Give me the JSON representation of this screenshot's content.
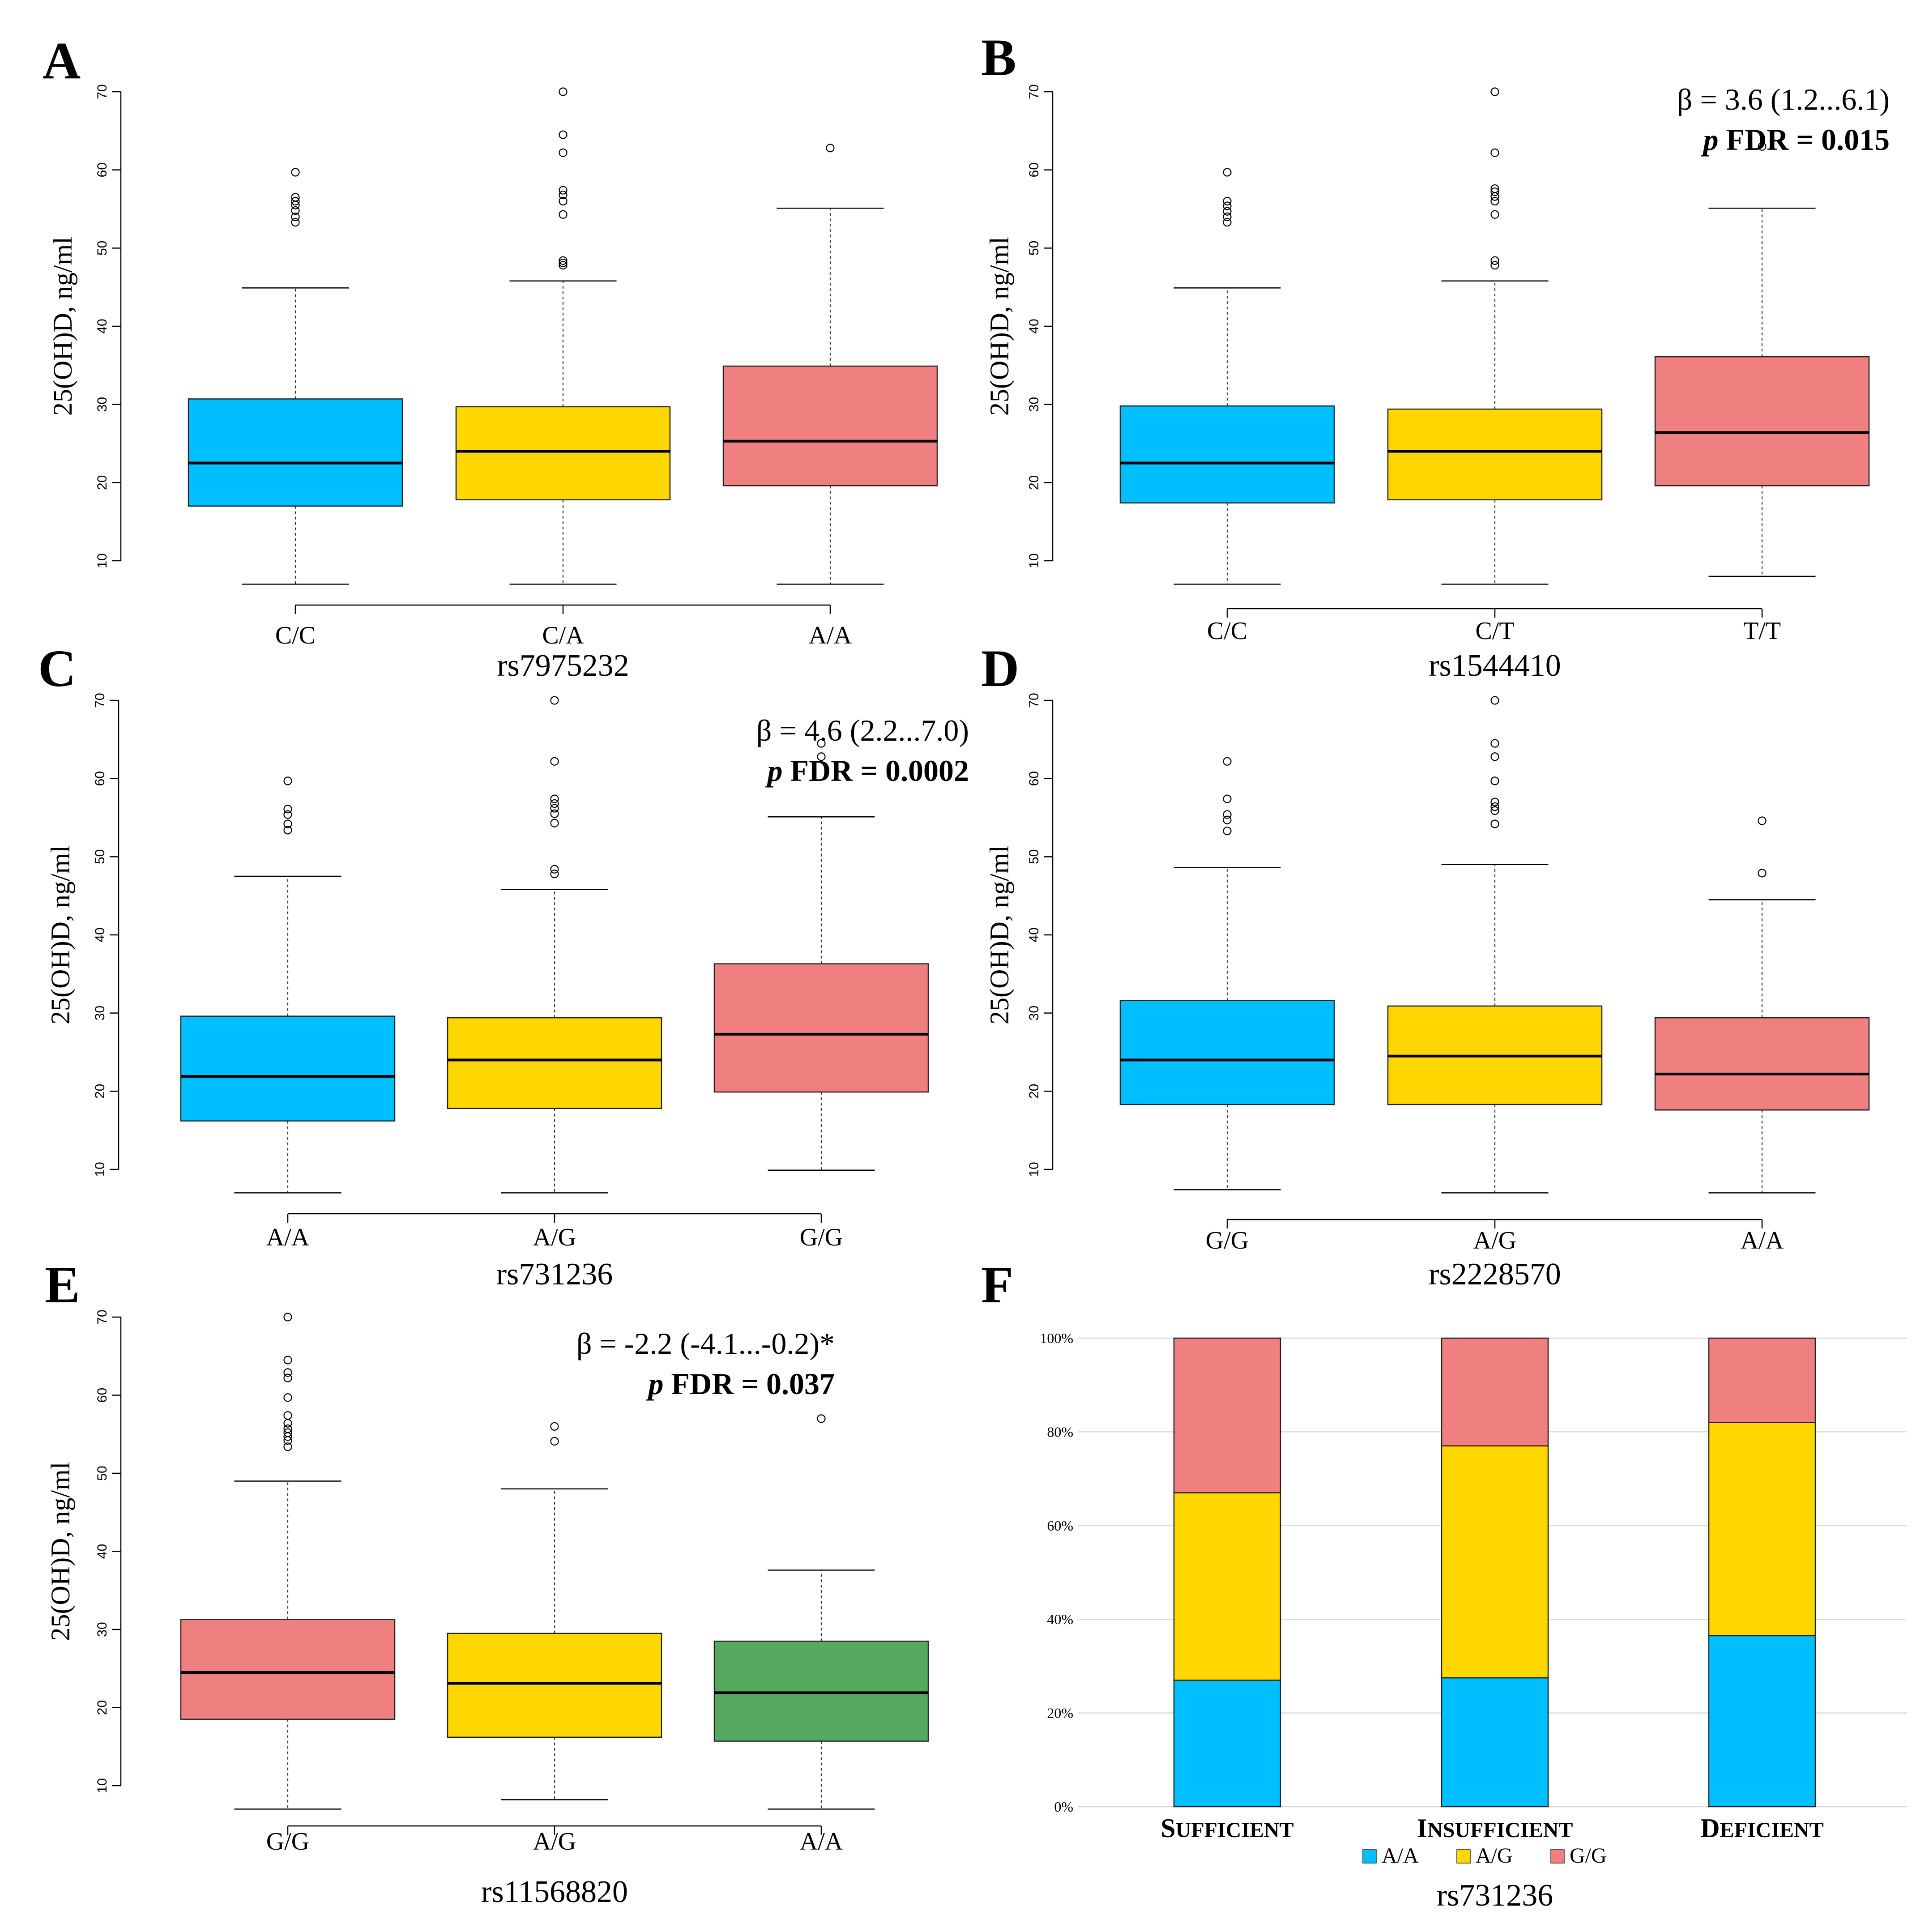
{
  "colors": {
    "blue": "#00BFFF",
    "yellow": "#FFD700",
    "red": "#F08080",
    "green": "#55AA60",
    "grid": "#D9D9D9"
  },
  "chart_data": [
    {
      "id": "A",
      "type": "boxplot",
      "panel_letter": "A",
      "ylabel": "25(OH)D, ng/ml",
      "xlabel": "rs7975232",
      "yticks": [
        10,
        20,
        30,
        40,
        50,
        60,
        70
      ],
      "ylim": [
        7,
        70
      ],
      "stats": null,
      "groups": [
        {
          "label": "C/C",
          "color": "blue",
          "whisker_low": 7,
          "q1": 17,
          "median": 22.5,
          "q3": 30.7,
          "whisker_high": 44.9,
          "outliers": [
            53.3,
            54,
            54.8,
            55.5,
            56,
            56.5,
            59.7
          ]
        },
        {
          "label": "C/A",
          "color": "yellow",
          "whisker_low": 7,
          "q1": 17.8,
          "median": 24,
          "q3": 29.7,
          "whisker_high": 45.8,
          "outliers": [
            47.8,
            48.1,
            48.4,
            54.3,
            56,
            56.8,
            57.4,
            62.2,
            64.5,
            70
          ]
        },
        {
          "label": "A/A",
          "color": "red",
          "whisker_low": 7,
          "q1": 19.6,
          "median": 25.3,
          "q3": 34.9,
          "whisker_high": 55.1,
          "outliers": [
            62.8
          ]
        }
      ]
    },
    {
      "id": "B",
      "type": "boxplot",
      "panel_letter": "B",
      "ylabel": "25(OH)D, ng/ml",
      "xlabel": "rs1544410",
      "yticks": [
        10,
        20,
        30,
        40,
        50,
        60,
        70
      ],
      "ylim": [
        7,
        70
      ],
      "stats": {
        "line1": "β = 3.6 (1.2...6.1)",
        "p_symbol": "p",
        "line2_rest": " FDR = 0.015"
      },
      "groups": [
        {
          "label": "C/C",
          "color": "blue",
          "whisker_low": 7,
          "q1": 17.4,
          "median": 22.5,
          "q3": 29.8,
          "whisker_high": 44.9,
          "outliers": [
            53.3,
            54,
            54.7,
            55.4,
            56,
            59.7
          ]
        },
        {
          "label": "C/T",
          "color": "yellow",
          "whisker_low": 7,
          "q1": 17.8,
          "median": 24,
          "q3": 29.4,
          "whisker_high": 45.8,
          "outliers": [
            47.8,
            48.4,
            54.3,
            56,
            56.6,
            57.2,
            57.6,
            62.2,
            70
          ]
        },
        {
          "label": "T/T",
          "color": "red",
          "whisker_low": 8,
          "q1": 19.6,
          "median": 26.4,
          "q3": 36.1,
          "whisker_high": 55.1,
          "outliers": [
            63
          ]
        }
      ]
    },
    {
      "id": "C",
      "type": "boxplot",
      "panel_letter": "C",
      "ylabel": "25(OH)D, ng/ml",
      "xlabel": "rs731236",
      "yticks": [
        10,
        20,
        30,
        40,
        50,
        60,
        70
      ],
      "ylim": [
        7,
        70
      ],
      "stats": {
        "line1": "β = 4.6 (2.2...7.0)",
        "p_symbol": "p",
        "line2_rest": " FDR = 0.0002"
      },
      "groups": [
        {
          "label": "A/A",
          "color": "blue",
          "whisker_low": 7,
          "q1": 16.2,
          "median": 21.9,
          "q3": 29.6,
          "whisker_high": 47.5,
          "outliers": [
            53.4,
            54.2,
            55.4,
            56.1,
            59.7
          ]
        },
        {
          "label": "A/G",
          "color": "yellow",
          "whisker_low": 7,
          "q1": 17.8,
          "median": 24,
          "q3": 29.4,
          "whisker_high": 45.8,
          "outliers": [
            47.8,
            48.4,
            54.3,
            55.5,
            56.2,
            56.8,
            57.4,
            62.2,
            70
          ]
        },
        {
          "label": "G/G",
          "color": "red",
          "whisker_low": 9.9,
          "q1": 19.9,
          "median": 27.3,
          "q3": 36.3,
          "whisker_high": 55.1,
          "outliers": [
            62.8,
            64.5
          ]
        }
      ]
    },
    {
      "id": "D",
      "type": "boxplot",
      "panel_letter": "D",
      "ylabel": "25(OH)D, ng/ml",
      "xlabel": "rs2228570",
      "yticks": [
        10,
        20,
        30,
        40,
        50,
        60,
        70
      ],
      "ylim": [
        7,
        70
      ],
      "stats": null,
      "groups": [
        {
          "label": "G/G",
          "color": "blue",
          "whisker_low": 7.4,
          "q1": 18.3,
          "median": 24,
          "q3": 31.6,
          "whisker_high": 48.6,
          "outliers": [
            53.3,
            54.7,
            55.4,
            57.4,
            62.2
          ]
        },
        {
          "label": "A/G",
          "color": "yellow",
          "whisker_low": 7,
          "q1": 18.3,
          "median": 24.5,
          "q3": 30.9,
          "whisker_high": 49,
          "outliers": [
            54.2,
            55.9,
            56.4,
            57,
            59.7,
            62.8,
            64.5,
            70
          ]
        },
        {
          "label": "A/A",
          "color": "red",
          "whisker_low": 7,
          "q1": 17.6,
          "median": 22.2,
          "q3": 29.4,
          "whisker_high": 44.5,
          "outliers": [
            47.9,
            54.6
          ]
        }
      ]
    },
    {
      "id": "E",
      "type": "boxplot",
      "panel_letter": "E",
      "ylabel": "25(OH)D, ng/ml",
      "xlabel": "rs11568820",
      "yticks": [
        10,
        20,
        30,
        40,
        50,
        60,
        70
      ],
      "ylim": [
        7,
        70
      ],
      "stats": {
        "line1": "β = -2.2 (-4.1...-0.2)*",
        "p_symbol": "p",
        "line2_rest": " FDR = 0.037"
      },
      "groups": [
        {
          "label": "G/G",
          "color": "red",
          "whisker_low": 7,
          "q1": 18.5,
          "median": 24.5,
          "q3": 31.3,
          "whisker_high": 49,
          "outliers": [
            53.4,
            54.2,
            54.7,
            55.2,
            55.7,
            56.4,
            57.4,
            59.7,
            62.2,
            62.9,
            64.5,
            70
          ]
        },
        {
          "label": "A/G",
          "color": "yellow",
          "whisker_low": 8.2,
          "q1": 16.2,
          "median": 23.1,
          "q3": 29.5,
          "whisker_high": 48,
          "outliers": [
            54.1,
            56
          ]
        },
        {
          "label": "A/A",
          "color": "green",
          "whisker_low": 7,
          "q1": 15.7,
          "median": 21.9,
          "q3": 28.5,
          "whisker_high": 37.6,
          "outliers": [
            57
          ]
        }
      ]
    },
    {
      "id": "F",
      "type": "stacked-bar",
      "panel_letter": "F",
      "xlabel": "rs731236",
      "ylim": [
        0,
        100
      ],
      "yticks": [
        "0%",
        "20%",
        "40%",
        "60%",
        "80%",
        "100%"
      ],
      "categories": [
        {
          "first": "S",
          "rest": "UFFICIENT"
        },
        {
          "first": "I",
          "rest": "NSUFFICIENT"
        },
        {
          "first": "D",
          "rest": "EFICIENT"
        }
      ],
      "series": [
        {
          "name": "A/A",
          "color": "blue",
          "values": [
            27,
            27.5,
            36.5
          ]
        },
        {
          "name": "A/G",
          "color": "yellow",
          "values": [
            40,
            49.5,
            45.5
          ]
        },
        {
          "name": "G/G",
          "color": "red",
          "values": [
            33,
            23,
            18
          ]
        }
      ]
    }
  ]
}
